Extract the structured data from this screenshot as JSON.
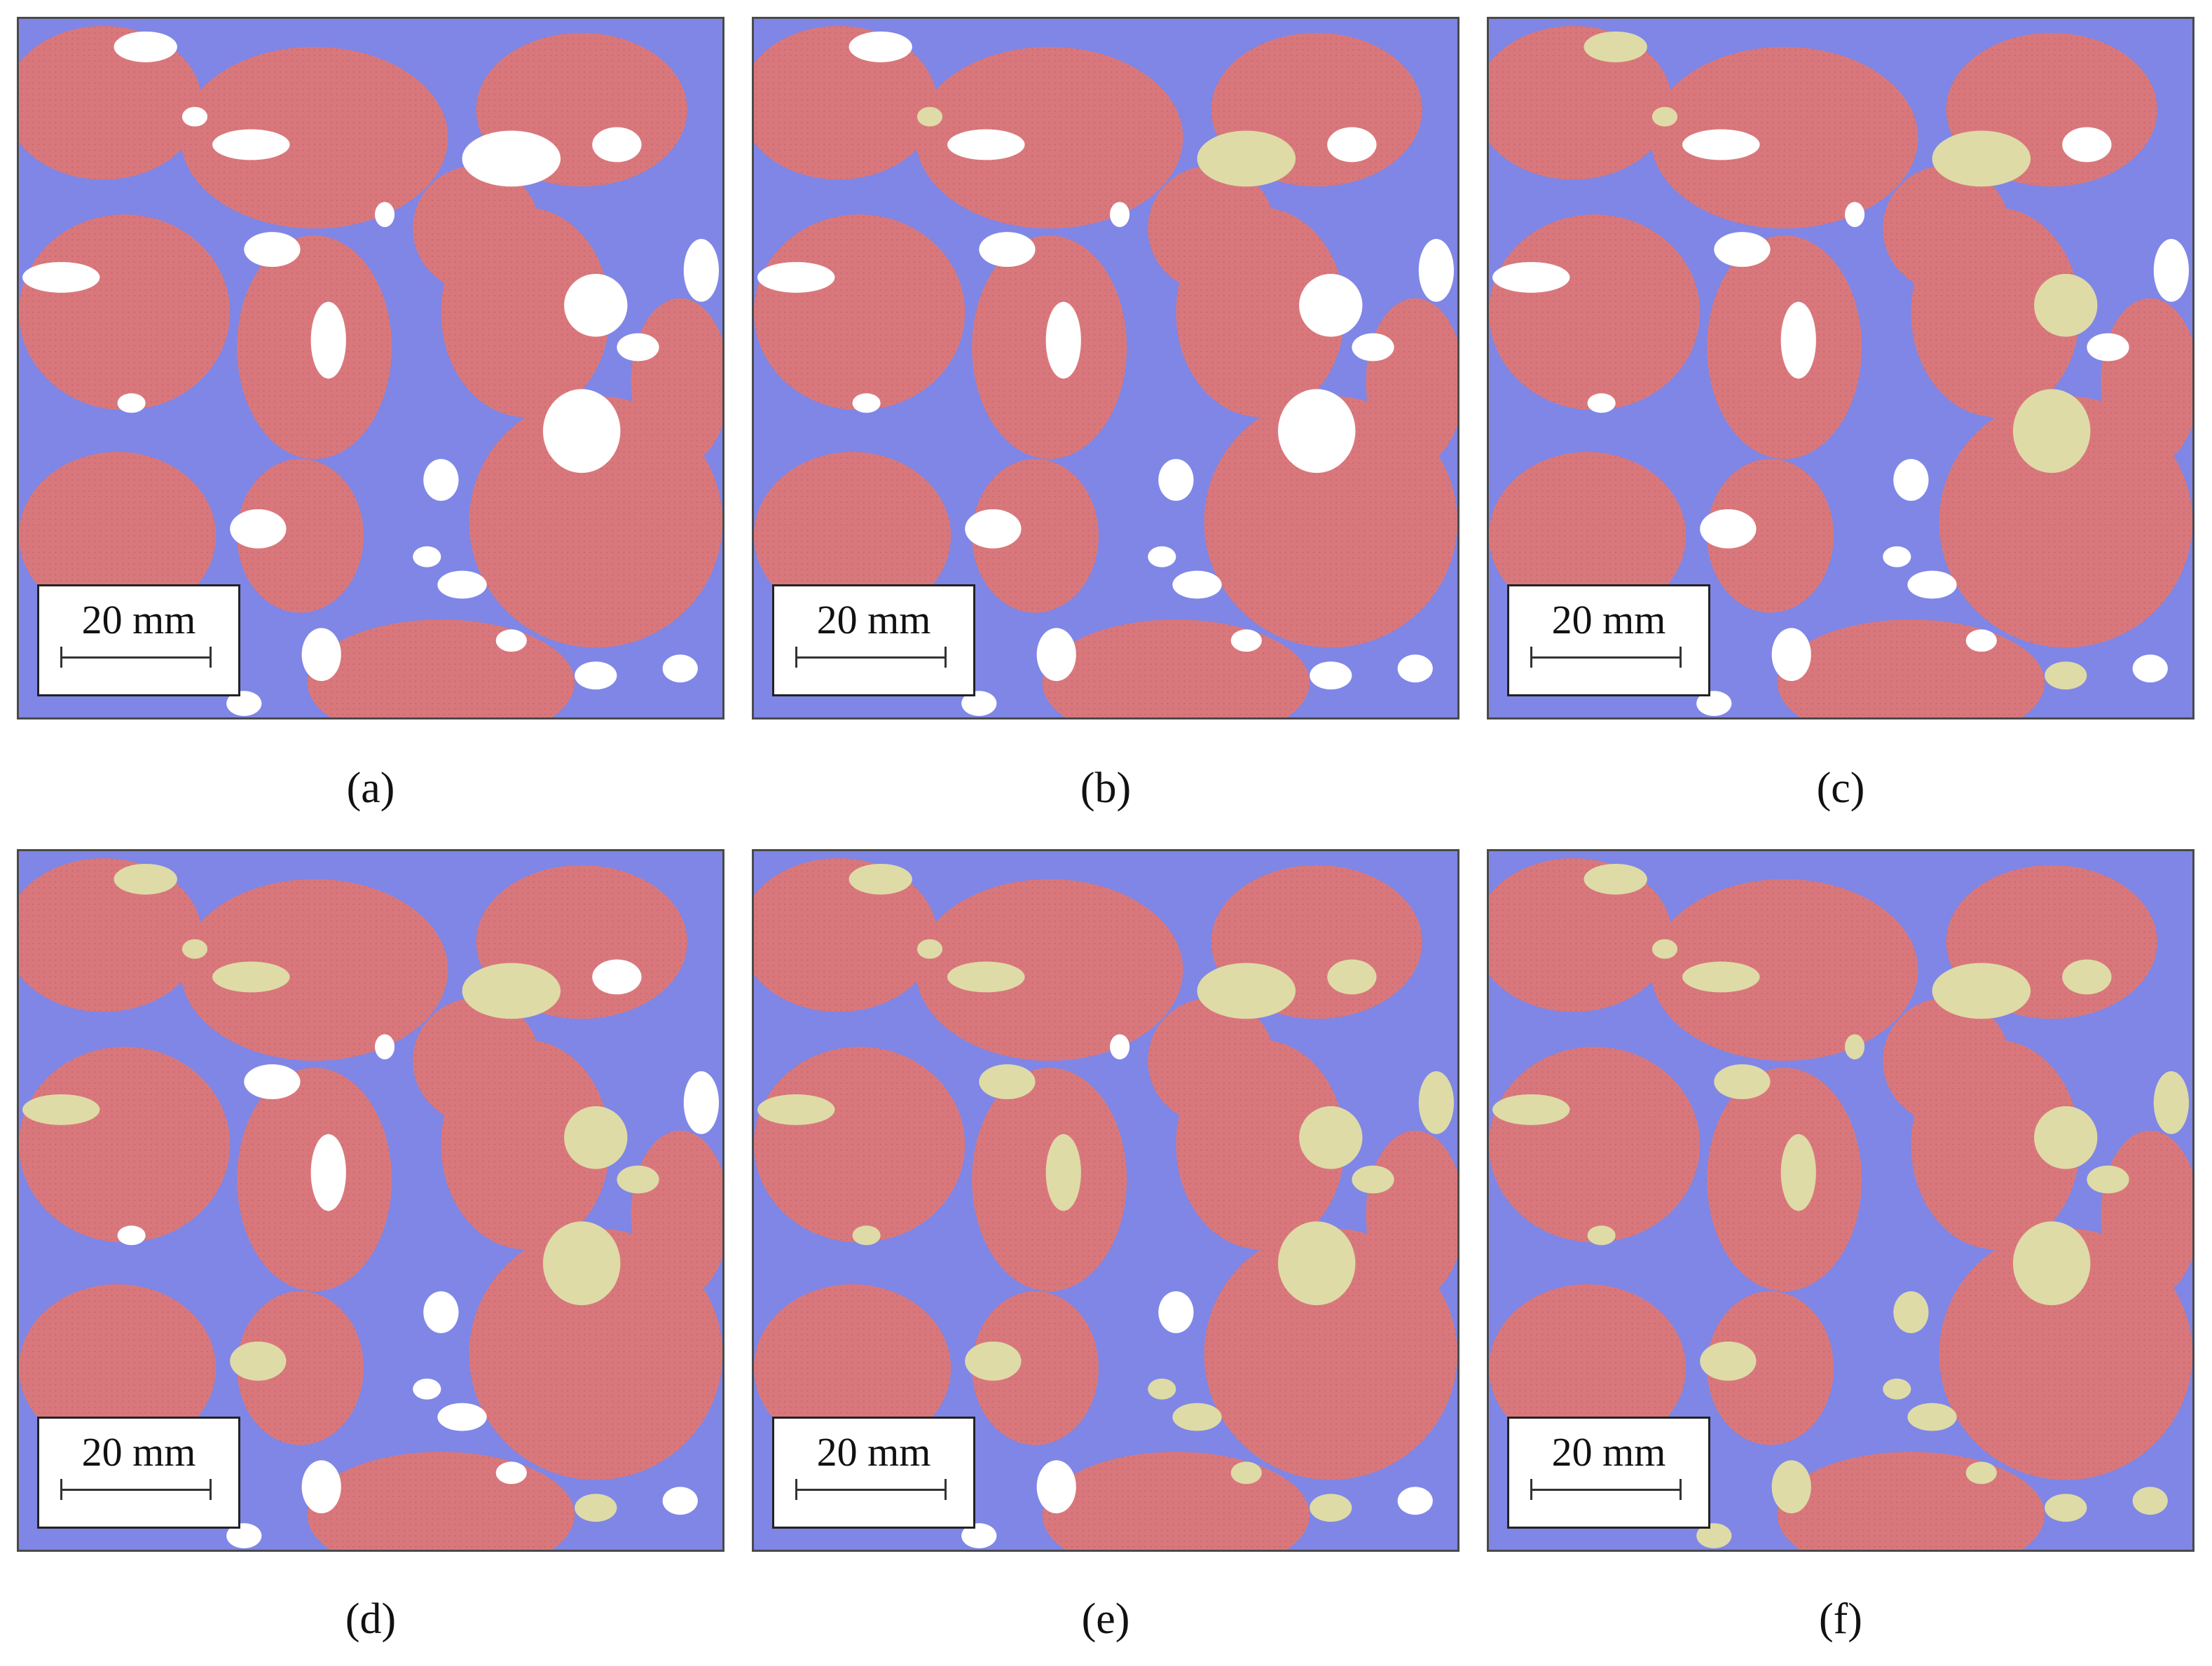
{
  "colors": {
    "aggregate": "#d9787c",
    "aggregate_dot": "#cf6a70",
    "mortar": "#7f86e6",
    "void": "#ffffff",
    "filler": "#dedba7",
    "frame": "#4a4a4a"
  },
  "panels": [
    {
      "caption": "(a)",
      "scale_label": "20 mm",
      "filler_level": 0.0
    },
    {
      "caption": "(b)",
      "scale_label": "20 mm",
      "filler_level": 0.1
    },
    {
      "caption": "(c)",
      "scale_label": "20 mm",
      "filler_level": 0.25
    },
    {
      "caption": "(d)",
      "scale_label": "20 mm",
      "filler_level": 0.45
    },
    {
      "caption": "(e)",
      "scale_label": "20 mm",
      "filler_level": 0.8
    },
    {
      "caption": "(f)",
      "scale_label": "20 mm",
      "filler_level": 1.0
    }
  ]
}
